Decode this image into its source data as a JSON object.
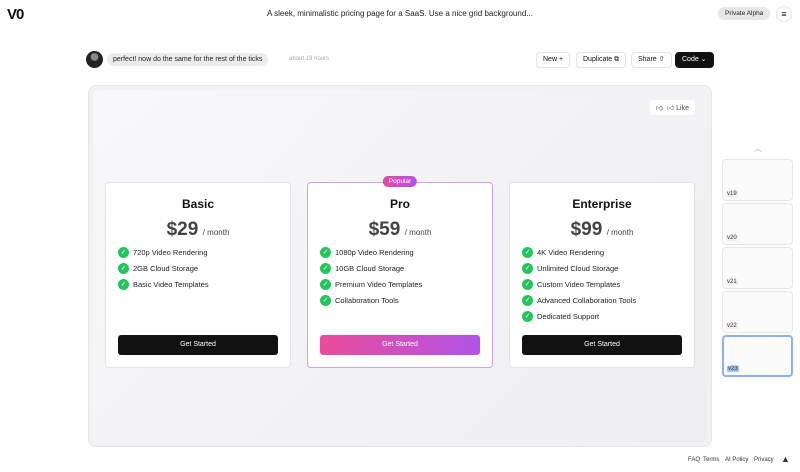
{
  "header": {
    "logo": "V0",
    "title": "A sleek, minimalistic pricing page for a SaaS. Use a nice grid background...",
    "badge": "Private Alpha",
    "menu_icon": "hamburger-icon"
  },
  "chat": {
    "message": "perfect! now do the same for the rest of the ticks",
    "time": "about 19 hours"
  },
  "toolbar": {
    "new": "New +",
    "duplicate": "Duplicate ⧉",
    "share": "Share ⇧",
    "code": "Code ⌄"
  },
  "preview": {
    "like": "Like",
    "plans": [
      {
        "name": "Basic",
        "price": "$29",
        "period": "/ month",
        "features": [
          "720p Video Rendering",
          "2GB Cloud Storage",
          "Basic Video Templates"
        ],
        "cta": "Get Started"
      },
      {
        "name": "Pro",
        "badge": "Popular",
        "price": "$59",
        "period": "/ month",
        "features": [
          "1080p Video Rendering",
          "10GB Cloud Storage",
          "Premium Video Templates",
          "Collaboration Tools"
        ],
        "cta": "Get Started"
      },
      {
        "name": "Enterprise",
        "price": "$99",
        "period": "/ month",
        "features": [
          "4K Video Rendering",
          "Unlimited Cloud Storage",
          "Custom Video Templates",
          "Advanced Collaboration Tools",
          "Dedicated Support"
        ],
        "cta": "Get Started"
      }
    ]
  },
  "versions": [
    "v19",
    "v20",
    "v21",
    "v22",
    "v23"
  ],
  "selected_version": "v23",
  "footer": [
    "FAQ",
    "Terms",
    "AI Policy",
    "Privacy"
  ],
  "colors": {
    "accent_start": "#ea4c9a",
    "accent_end": "#b253e8",
    "check": "#22c55e"
  }
}
